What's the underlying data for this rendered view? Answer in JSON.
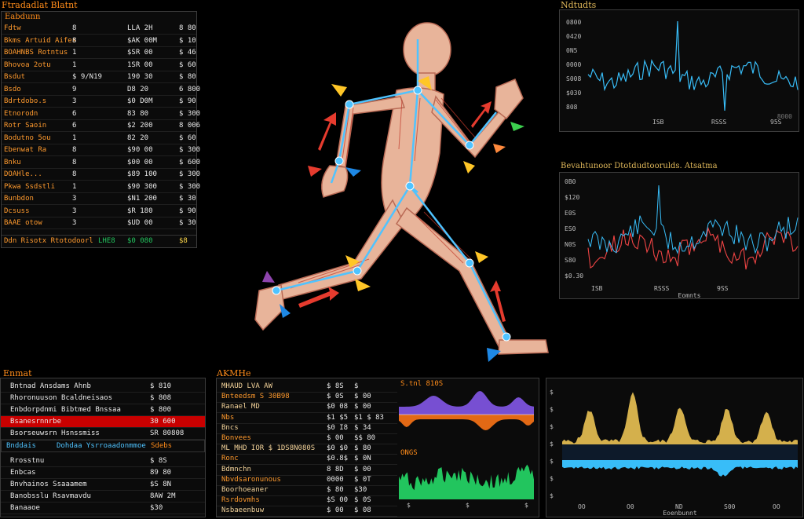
{
  "colors": {
    "accent": "#ff8c1a",
    "highlight": "#c80000",
    "positive": "#22c55e",
    "line_blue": "#38bdf8",
    "line_red": "#ef4444",
    "area_purple": "#8b5cf6",
    "area_orange": "#f97316",
    "area_green": "#22c55e",
    "area_gold": "#d4b04c"
  },
  "topleft": {
    "title": "Ftradadlat Blatnt",
    "subtitle": "Eabdunn",
    "rows": [
      [
        "Fdtw",
        "8",
        "LLA 2H",
        "8 80"
      ],
      [
        "Bkms Artuid Aifes",
        "8",
        "$AK 00M",
        "$ 10"
      ],
      [
        "BOAHNBS Rotntus",
        "1",
        "$SR 00",
        "$ 46"
      ],
      [
        "Bhovoa 2otu",
        "1",
        "1SR 00",
        "$ 60"
      ],
      [
        "Bsdut",
        "$ 9/N19",
        "190 30",
        "$ 80"
      ],
      [
        "Bsdo",
        "9",
        "D8 20",
        "6 800"
      ],
      [
        "Bdrtdobo.s",
        "3",
        "$0 D0M",
        "$ 90"
      ],
      [
        "Etnorodn",
        "6",
        "83 80",
        "$ 300"
      ],
      [
        "Rotr Saoin",
        "6",
        "$2 200",
        "8 006"
      ],
      [
        "Bodutno 5ou",
        "1",
        "82 20",
        "$ 60"
      ],
      [
        "Ebenwat Ra",
        "8",
        "$90 00",
        "$ 300"
      ],
      [
        "Bnku",
        "8",
        "$00 00",
        "$ 600"
      ],
      [
        "DOAHle...",
        "8",
        "$89 100",
        "$ 300"
      ],
      [
        "Pkwa Ssdstli",
        "1",
        "$90 300",
        "$ 300"
      ],
      [
        "Bunbdon",
        "3",
        "$N1 200",
        "$ 30"
      ],
      [
        "Dcsuss",
        "3",
        "$R 180",
        "$ 90"
      ],
      [
        "BAAE otow",
        "3",
        "$UD 00",
        "$ 30"
      ]
    ],
    "footer": {
      "label": "Ddn Risotx Rtotodoorl",
      "val1": "LHE8",
      "val2": "$0 080",
      "val3": "$8"
    }
  },
  "figure": {
    "description_hidden": ""
  },
  "chart1": {
    "title": "Ndtudts",
    "yticks": [
      "0800",
      "0420",
      "0N5",
      "0000",
      "S008",
      "$030",
      "808"
    ],
    "xticks": [
      "ISB",
      "RSSS",
      "95S"
    ],
    "footer": "8000"
  },
  "chart2": {
    "title": "Bevahtunoor Dtotdudtoorulds. Atsatma",
    "yticks": [
      "0B0",
      "$120",
      "E0S",
      "ES0",
      "N0S",
      "S80",
      "$0.30"
    ],
    "xticks": [
      "ISB",
      "RSSS",
      "9SS"
    ],
    "xlabel": "Eomnts"
  },
  "bottomleft": {
    "title": "Enmat",
    "rows1": [
      [
        "Bntnad Ansdams Ahnb",
        "$ 810"
      ],
      [
        "Rhoronuuson Bcaldneisaos",
        "$ 808"
      ],
      [
        "Enbdorpdnmi Bibtmed Bnssaa",
        "$ 800"
      ],
      [
        "Bsanesrnnrbe",
        "30 600"
      ],
      [
        "Bsorseuwsrn Hsnssmiss",
        "SR 80808"
      ]
    ],
    "subhead": {
      "a": "Bnddais",
      "b": "Dohdaa Ysrroaadonmmoe",
      "c": "Sdebs"
    },
    "rows2": [
      [
        "Rrosstnu",
        "$ 8S"
      ],
      [
        "Enbcas",
        "89 80"
      ],
      [
        "Bnvhainos Ssaaamem",
        "$S 8N"
      ],
      [
        "Banobsslu Rsavmavdu",
        "8AW 2M"
      ],
      [
        "Banaaoe",
        "$30"
      ]
    ]
  },
  "bottommid": {
    "title": "AKMHe",
    "rows": [
      [
        "MHAUD LVA AW",
        "$ 8S",
        "$"
      ],
      [
        "Bnteedsm S 30B98",
        "$ 0S",
        "$ 00"
      ],
      [
        "Ranael MD",
        "$0 08",
        "$ 00"
      ],
      [
        "Nbs",
        "$1 $5",
        "$1 $ 83"
      ],
      [
        "Bncs",
        "$0 I8",
        "$ 34"
      ],
      [
        "Bonvees",
        "$ 00",
        "$$ 80"
      ],
      [
        "ML MHD IOR $ 1DS8N080S",
        "$0 $0",
        "$ 80"
      ],
      [
        "Ronc",
        "$0.8$",
        "$ 0N"
      ],
      [
        "Bdmnchn",
        "8 8D",
        "$ 00"
      ],
      [
        "Nbvdsaronunous",
        "0000",
        "$ 0T"
      ],
      [
        "Boorhoeaner",
        "$ 80",
        "$30"
      ],
      [
        "Rsrdovmhs",
        "$S 00",
        "$ 0S"
      ],
      [
        "Nsbaeenbuw",
        "$ 00",
        "$ 08"
      ]
    ],
    "area_label": "S.tnl 810S",
    "ticks_a": [
      "$",
      "$",
      "$"
    ],
    "green_label": "ONGS",
    "green_ticks": [
      "$",
      "$",
      "$"
    ]
  },
  "bottomright": {
    "yticks": [
      "$",
      "$",
      "$",
      "$",
      "$",
      "$",
      "$"
    ],
    "xticks": [
      "OO",
      "O0",
      "ND",
      "S00",
      "OO"
    ],
    "xlabel": "Eoenbunnt"
  }
}
